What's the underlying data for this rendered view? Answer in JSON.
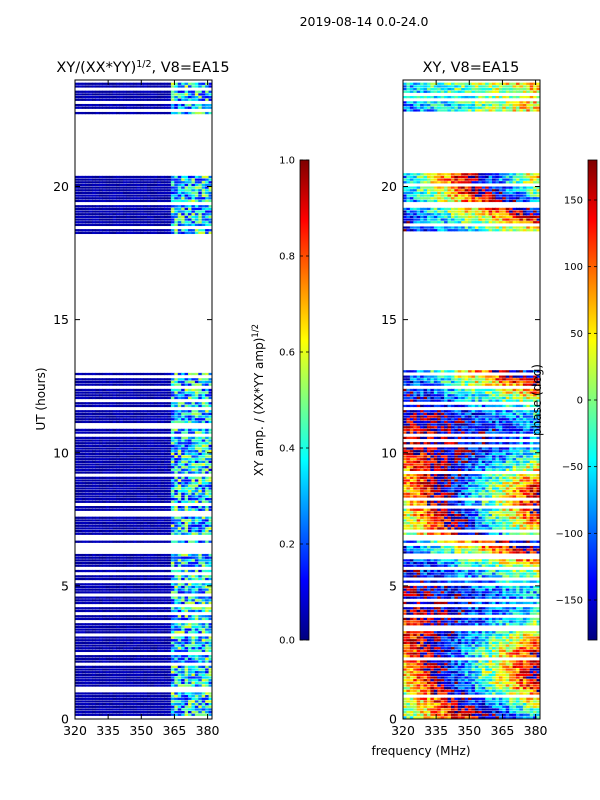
{
  "figure_title": "2019-08-14 0.0-24.0",
  "colors": {
    "jet": [
      "#00007f",
      "#0000ff",
      "#007fff",
      "#00ffff",
      "#7fff7f",
      "#ffff00",
      "#ff7f00",
      "#ff0000",
      "#7f0000"
    ],
    "background": "#ffffff",
    "axis": "#000000"
  },
  "chart_data": [
    {
      "type": "heatmap",
      "title": "XY/(XX*YY)",
      "title_superscript": "1/2",
      "title_suffix": ", V8=EA15",
      "xlabel": "",
      "ylabel": "UT (hours)",
      "xlim": [
        320,
        382
      ],
      "ylim": [
        0,
        24
      ],
      "xticks": [
        320,
        335,
        350,
        365,
        380
      ],
      "yticks": [
        0,
        5,
        10,
        15,
        20
      ],
      "quantity": "normalized XY amplitude",
      "typical_background_value": 0.05,
      "bright_channel_range_mhz": [
        362,
        382
      ],
      "bright_values_range": [
        0.2,
        0.6
      ],
      "data_time_blocks_hours": [
        [
          0,
          6.7
        ],
        [
          6.9,
          13.1
        ],
        [
          18.2,
          20.5
        ],
        [
          22.7,
          23.9
        ]
      ],
      "gap_time_blocks_hours": [
        [
          6.7,
          6.9
        ],
        [
          13.1,
          18.2
        ],
        [
          20.5,
          22.7
        ]
      ],
      "colorbar": {
        "label": "XY amp. / (XX*YY amp)",
        "label_superscript": "1/2",
        "range": [
          0.0,
          1.0
        ],
        "ticks": [
          "0.0",
          "0.2",
          "0.4",
          "0.6",
          "0.8",
          "1.0"
        ]
      }
    },
    {
      "type": "heatmap",
      "title": "XY, V8=EA15",
      "xlabel": "frequency (MHz)",
      "ylabel": "",
      "xlim": [
        320,
        382
      ],
      "ylim": [
        0,
        24
      ],
      "xticks": [
        320,
        335,
        350,
        365,
        380
      ],
      "yticks": [
        0,
        5,
        10,
        15,
        20
      ],
      "quantity": "XY phase (deg)",
      "data_time_blocks_hours": [
        [
          0,
          6.7
        ],
        [
          6.9,
          13.1
        ],
        [
          18.2,
          20.5
        ],
        [
          22.7,
          23.9
        ]
      ],
      "gap_time_blocks_hours": [
        [
          6.7,
          6.9
        ],
        [
          13.1,
          18.2
        ],
        [
          20.5,
          22.7
        ]
      ],
      "colorbar": {
        "label": "phase (deg)",
        "range": [
          -180,
          180
        ],
        "ticks": [
          "150",
          "100",
          "50",
          "0",
          "−50",
          "−100",
          "−150"
        ],
        "tick_values": [
          150,
          100,
          50,
          0,
          -50,
          -100,
          -150
        ]
      }
    }
  ]
}
